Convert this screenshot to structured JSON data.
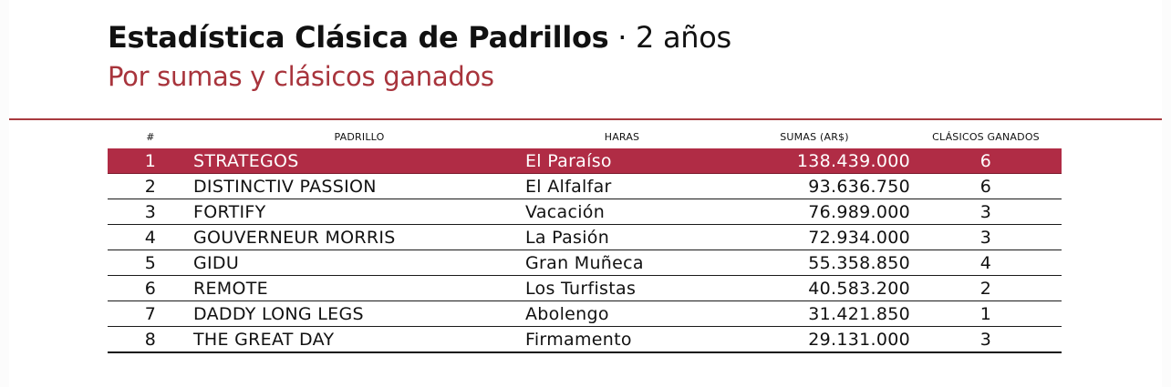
{
  "header": {
    "title_bold": "Estadística Clásica de Padrillos",
    "title_suffix": " · 2 años",
    "subtitle": "Por sumas y clásicos ganados"
  },
  "table": {
    "columns": [
      "#",
      "PADRILLO",
      "HARAS",
      "SUMAS (AR$)",
      "CLÁSICOS GANADOS"
    ],
    "rows": [
      {
        "num": "1",
        "padrillo": "STRATEGOS",
        "haras": "El Paraíso",
        "sumas": "138.439.000",
        "clasicos": "6",
        "highlight": true
      },
      {
        "num": "2",
        "padrillo": "DISTINCTIV PASSION",
        "haras": "El Alfalfar",
        "sumas": "93.636.750",
        "clasicos": "6"
      },
      {
        "num": "3",
        "padrillo": "FORTIFY",
        "haras": "Vacación",
        "sumas": "76.989.000",
        "clasicos": "3"
      },
      {
        "num": "4",
        "padrillo": "GOUVERNEUR MORRIS",
        "haras": "La Pasión",
        "sumas": "72.934.000",
        "clasicos": "3"
      },
      {
        "num": "5",
        "padrillo": "GIDU",
        "haras": "Gran Muñeca",
        "sumas": "55.358.850",
        "clasicos": "4"
      },
      {
        "num": "6",
        "padrillo": "REMOTE",
        "haras": "Los Turfistas",
        "sumas": "40.583.200",
        "clasicos": "2"
      },
      {
        "num": "7",
        "padrillo": "DADDY LONG LEGS",
        "haras": "Abolengo",
        "sumas": "31.421.850",
        "clasicos": "1"
      },
      {
        "num": "8",
        "padrillo": "THE GREAT DAY",
        "haras": "Firmamento",
        "sumas": "29.131.000",
        "clasicos": "3"
      }
    ]
  },
  "colors": {
    "accent": "#a8343c",
    "highlight_row": "#b02c45"
  }
}
